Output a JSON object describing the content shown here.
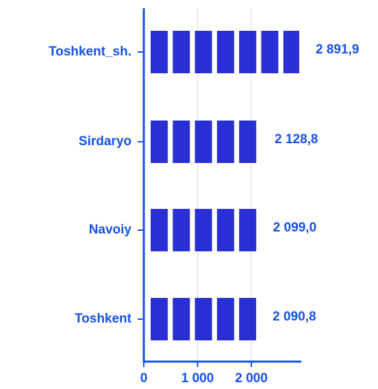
{
  "chart_data": {
    "type": "bar",
    "orientation": "horizontal",
    "categories": [
      "Toshkent_sh.",
      "Sirdaryo",
      "Navoiy",
      "Toshkent"
    ],
    "values": [
      2891.9,
      2128.8,
      2099.0,
      2090.8
    ],
    "value_labels": [
      "2 891,9",
      "2 128,8",
      "2 099,0",
      "2 090,8"
    ],
    "color": "#2a2fd4",
    "xlim": [
      0,
      2900
    ],
    "xticks": [
      0,
      {
        "value": 1000,
        "label": "1 000"
      },
      {
        "value": 2000,
        "label": "2 000"
      }
    ],
    "grid": true
  }
}
